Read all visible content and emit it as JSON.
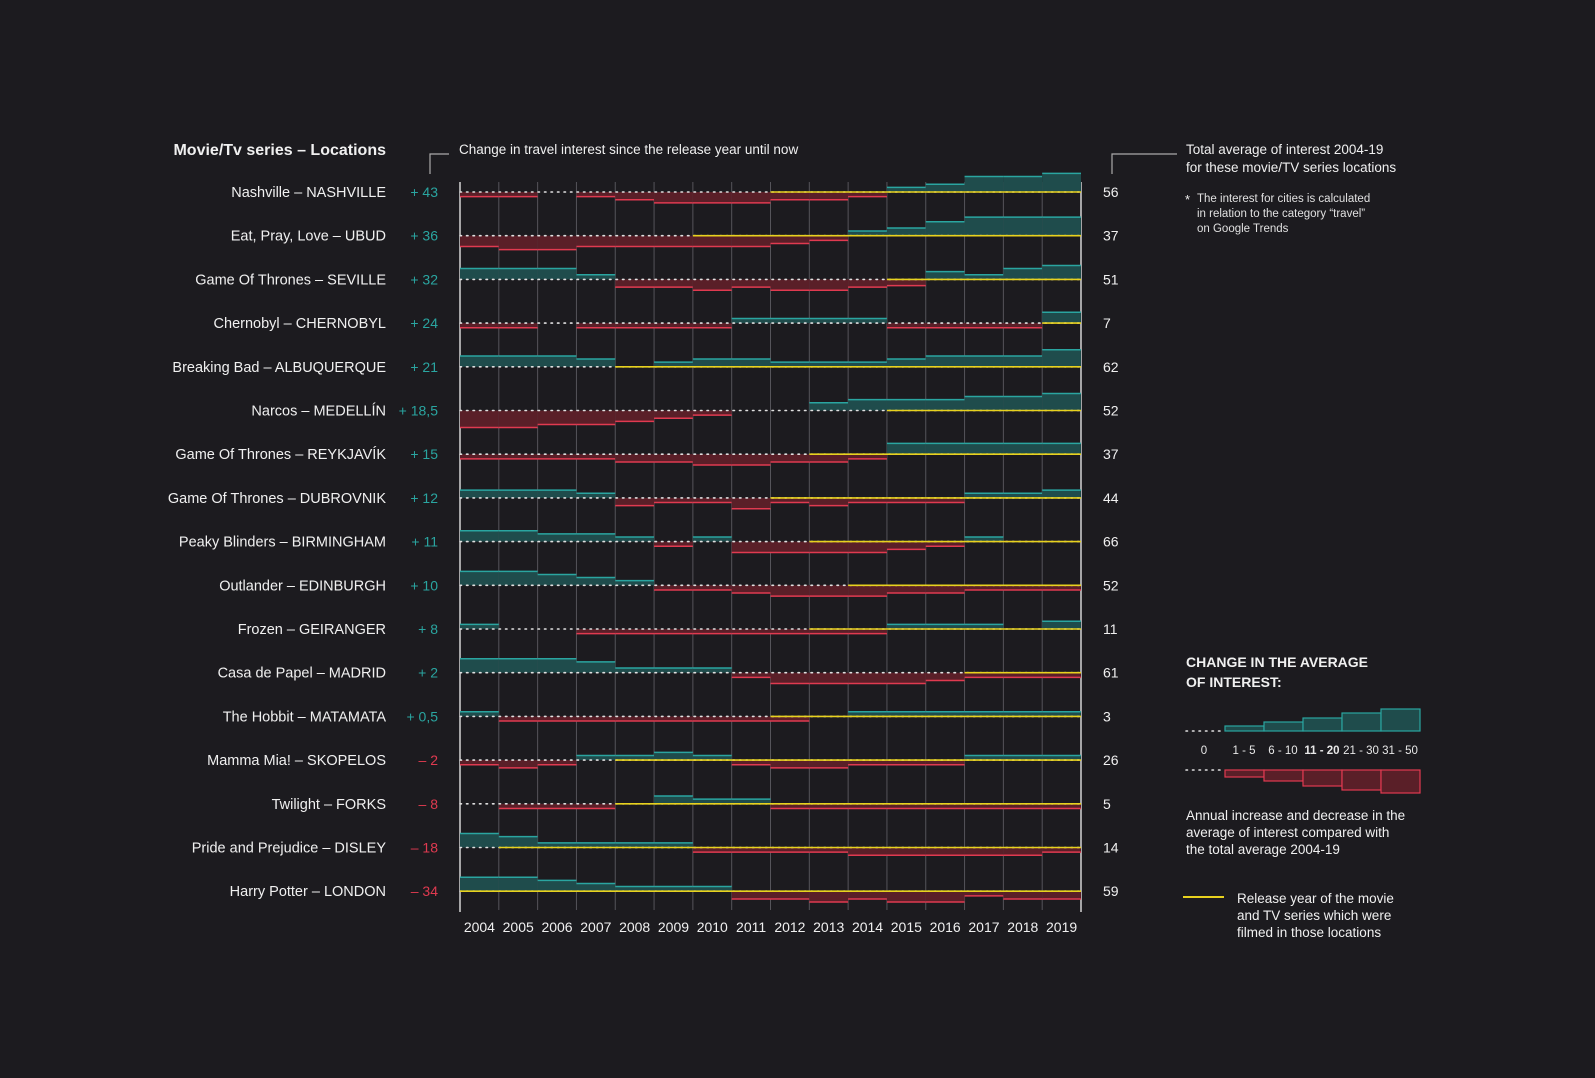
{
  "header": {
    "left_title": "Movie/Tv series  –  Locations",
    "change_title": "Change in travel interest since the release year until now",
    "total_title_line1": "Total average of interest 2004-19",
    "total_title_line2": "for these movie/TV series locations"
  },
  "note": {
    "star": "*",
    "line1": "The interest for cities is calculated",
    "line2": "in relation to the category “travel”",
    "line3": "on Google Trends"
  },
  "legend": {
    "title_line1": "CHANGE IN THE AVERAGE",
    "title_line2": "OF INTEREST:",
    "bins": [
      "0",
      "1 - 5",
      "6 - 10",
      "11 - 20",
      "21 - 30",
      "31 - 50"
    ],
    "desc_line1": "Annual increase and decrease in the",
    "desc_line2": "average of interest compared with",
    "desc_line3": "the total average 2004-19",
    "release_line1": "Release year of the movie",
    "release_line2": "and TV series which were",
    "release_line3": "filmed in those locations"
  },
  "colors": {
    "background": "#1c1b1f",
    "increase_fill": "#1f4c4c",
    "increase_stroke": "#2aa5a0",
    "decrease_fill": "#5a1f28",
    "decrease_stroke": "#e03a50",
    "release_line": "#e8d21e",
    "positive_text": "#2aa5a0",
    "negative_text": "#e03a50"
  },
  "chart_data": {
    "type": "bar",
    "years": [
      "2004",
      "2005",
      "2006",
      "2007",
      "2008",
      "2009",
      "2010",
      "2011",
      "2012",
      "2013",
      "2014",
      "2015",
      "2016",
      "2017",
      "2018",
      "2019"
    ],
    "rows": [
      {
        "label": "Nashville  –  NASHVILLE",
        "change": "+ 43",
        "total": "56",
        "release": "2012",
        "values": [
          -3,
          -3,
          0,
          -3,
          -5,
          -7,
          -7,
          -7,
          -5,
          -5,
          -3,
          3,
          5,
          10,
          10,
          12
        ]
      },
      {
        "label": "Eat, Pray, Love  –  UBUD",
        "change": "+ 36",
        "total": "37",
        "release": "2010",
        "values": [
          -7,
          -9,
          -9,
          -7,
          -7,
          -7,
          -7,
          -7,
          -5,
          -3,
          3,
          5,
          9,
          12,
          12,
          12
        ]
      },
      {
        "label": "Game Of Thrones  –  SEVILLE",
        "change": "+ 32",
        "total": "51",
        "release": "2015",
        "values": [
          7,
          7,
          7,
          3,
          -5,
          -5,
          -7,
          -5,
          -7,
          -7,
          -5,
          -4,
          5,
          3,
          7,
          9
        ]
      },
      {
        "label": "Chernobyl  –  CHERNOBYL",
        "change": "+ 24",
        "total": "7",
        "release": "2019",
        "values": [
          -3,
          -3,
          0,
          -3,
          -3,
          -3,
          -3,
          3,
          3,
          3,
          3,
          -3,
          -3,
          -3,
          -3,
          7
        ]
      },
      {
        "label": "Breaking Bad  –  ALBUQUERQUE",
        "change": "+ 21",
        "total": "62",
        "release": "2008",
        "values": [
          7,
          7,
          7,
          5,
          0,
          3,
          5,
          5,
          3,
          3,
          3,
          5,
          7,
          7,
          7,
          11
        ]
      },
      {
        "label": "Narcos  –  MEDELLÍN",
        "change": "+ 18,5",
        "total": "52",
        "release": "2015",
        "values": [
          -11,
          -11,
          -9,
          -9,
          -7,
          -5,
          -3,
          0,
          0,
          5,
          7,
          7,
          7,
          9,
          9,
          11
        ]
      },
      {
        "label": "Game Of Thrones  –  REYKJAVÍK",
        "change": "+ 15",
        "total": "37",
        "release": "2013",
        "values": [
          -3,
          -3,
          -3,
          -3,
          -5,
          -5,
          -7,
          -7,
          -5,
          -5,
          -3,
          7,
          7,
          7,
          7,
          7
        ]
      },
      {
        "label": "Game Of Thrones  –  DUBROVNIK",
        "change": "+ 12",
        "total": "44",
        "release": "2012",
        "values": [
          5,
          5,
          5,
          3,
          -5,
          -3,
          -3,
          -7,
          -3,
          -5,
          -3,
          -3,
          -3,
          3,
          3,
          5
        ]
      },
      {
        "label": "Peaky Blinders  –  BIRMINGHAM",
        "change": "+ 11",
        "total": "66",
        "release": "2013",
        "values": [
          7,
          7,
          5,
          5,
          3,
          -3,
          3,
          -7,
          -7,
          -7,
          -7,
          -5,
          -3,
          3,
          0,
          0
        ]
      },
      {
        "label": "Outlander  –  EDINBURGH",
        "change": "+ 10",
        "total": "52",
        "release": "2014",
        "values": [
          9,
          9,
          7,
          5,
          3,
          -3,
          -3,
          -5,
          -7,
          -7,
          -7,
          -5,
          -5,
          -3,
          -3,
          -3
        ]
      },
      {
        "label": "Frozen  –  GEIRANGER",
        "change": "+ 8",
        "total": "11",
        "release": "2013",
        "values": [
          3,
          0,
          0,
          -3,
          -3,
          -3,
          -3,
          -3,
          -3,
          -3,
          -3,
          3,
          3,
          3,
          0,
          5
        ]
      },
      {
        "label": "Casa de Papel  –  MADRID",
        "change": "+ 2",
        "total": "61",
        "release": "2017",
        "values": [
          9,
          9,
          9,
          7,
          3,
          3,
          3,
          -3,
          -7,
          -7,
          -7,
          -7,
          -5,
          -3,
          -3,
          -3
        ]
      },
      {
        "label": "The Hobbit  –  MATAMATA",
        "change": "+ 0,5",
        "total": "3",
        "release": "2012",
        "values": [
          3,
          -3,
          -3,
          -3,
          -3,
          -3,
          -3,
          -3,
          -3,
          0,
          3,
          3,
          3,
          3,
          3,
          3
        ]
      },
      {
        "label": "Mamma Mia!  –  SKOPELOS",
        "change": "– 2",
        "total": "26",
        "release": "2008",
        "values": [
          -3,
          -5,
          -3,
          3,
          3,
          5,
          3,
          -3,
          -5,
          -5,
          -3,
          -3,
          -3,
          3,
          3,
          3
        ]
      },
      {
        "label": "Twilight  –  FORKS",
        "change": "– 8",
        "total": "5",
        "release": "2008",
        "values": [
          0,
          -3,
          -3,
          -3,
          0,
          5,
          3,
          3,
          -3,
          -3,
          -3,
          -3,
          -3,
          -3,
          -3,
          -3
        ]
      },
      {
        "label": "Pride and Prejudice  –  DISLEY",
        "change": "– 18",
        "total": "14",
        "release": "2005",
        "values": [
          9,
          7,
          3,
          3,
          3,
          3,
          -3,
          -3,
          -3,
          -3,
          -5,
          -5,
          -5,
          -5,
          -5,
          -3
        ]
      },
      {
        "label": "Harry Potter  –  LONDON",
        "change": "– 34",
        "total": "59",
        "release": "2001",
        "values": [
          9,
          9,
          7,
          5,
          3,
          3,
          3,
          -5,
          -5,
          -7,
          -5,
          -7,
          -7,
          -3,
          -5,
          -5
        ]
      }
    ]
  }
}
